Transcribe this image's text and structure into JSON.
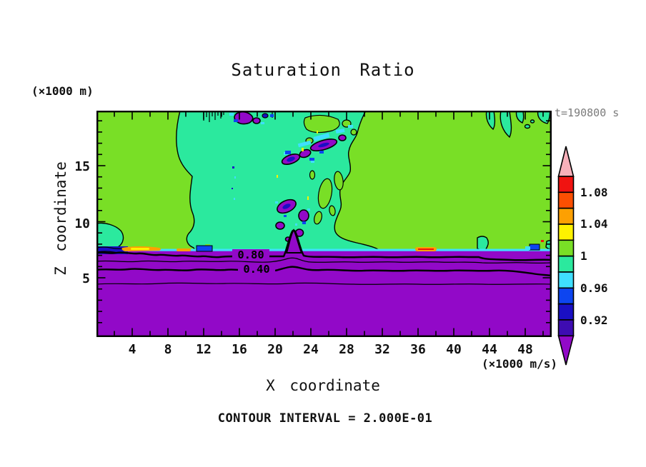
{
  "title": "Saturation Ratio",
  "annotations": {
    "time": "t=190800 s",
    "contour_interval": "CONTOUR INTERVAL = 2.000E-01"
  },
  "axes": {
    "x": {
      "label": "X coordinate",
      "units": "(×1000 m/s)",
      "ticks": [
        "4",
        "8",
        "12",
        "16",
        "20",
        "24",
        "28",
        "32",
        "36",
        "40",
        "44",
        "48"
      ]
    },
    "y": {
      "label": "Z coordinate",
      "units": "(×1000 m)",
      "ticks": [
        "15",
        "10",
        "5"
      ]
    }
  },
  "plot": {
    "contour_labels": [
      "0.80",
      "0.40"
    ]
  },
  "colorbar": {
    "labels": [
      "1.08",
      "1.04",
      "1",
      "0.96",
      "0.92"
    ],
    "segments": [
      "red",
      "orangered",
      "orange",
      "yellow",
      "chartreuse",
      "springgreen",
      "cyan",
      "blue",
      "navy",
      "indigo"
    ],
    "up_arrow": "pink",
    "down_arrow": "purple"
  },
  "palette": {
    "pink": "#f8b0ba",
    "red": "#f01311",
    "orangered": "#fc4f02",
    "orange": "#fda002",
    "yellow": "#fef200",
    "chartreuse": "#79df26",
    "springgreen": "#2be99e",
    "cyan": "#3fdfff",
    "blue": "#0d45f0",
    "navy": "#1a0fc4",
    "indigo": "#3e0cb2",
    "purple": "#9209c8",
    "frame": "#000000"
  },
  "chart_data": {
    "type": "heatmap",
    "subtype": "filled_contour",
    "title": "Saturation Ratio",
    "time_annotation": "t=190800 s",
    "xlabel": "X coordinate",
    "x_units": "(×1000 m/s)",
    "x_ticks": [
      4,
      8,
      12,
      16,
      20,
      24,
      28,
      32,
      36,
      40,
      44,
      48
    ],
    "xlim": [
      0,
      51
    ],
    "ylabel": "Z coordinate",
    "y_units": "(×1000 m)",
    "y_ticks": [
      5,
      10,
      15
    ],
    "ylim": [
      0,
      19.8
    ],
    "grid": false,
    "legend_position": "right-colorbar",
    "contour_interval": 0.2,
    "labeled_contour_lines": [
      0.8,
      0.4
    ],
    "colorbar": {
      "tick_labels": [
        1.08,
        1.04,
        1,
        0.96,
        0.92
      ],
      "segment_step": 0.02,
      "range_boundaries": [
        0.9,
        0.92,
        0.94,
        0.96,
        0.98,
        1.0,
        1.02,
        1.04,
        1.06,
        1.08,
        1.1
      ],
      "colors_top_to_bottom": [
        "pink",
        "red",
        "orangered",
        "orange",
        "yellow",
        "chartreuse",
        "springgreen",
        "cyan",
        "blue",
        "navy",
        "indigo",
        "purple"
      ]
    },
    "features": [
      "Below z≈7.5 (×1000 m) the whole domain is <0.9 (purple) with horizontal contour lines at 0.8, 0.6, 0.4 and 0.2",
      "Sharp boundary near z≈7.5 marked by a thin cyan/blue band; local orange streaks (≈1.04-1.08) near x≈3-7, x≈9-11 and x≈36-38",
      "Central cloudy region x≈9-32, z≈7.5-20 at 0.98-1.00 (spring green) with embedded pockets <0.94 (purple/navy) and 0.96-0.98 cyan flecks",
      "Surrounding air at 1.00-1.02 (chartreuse); spring-green fingers at top near x≈44-48",
      "Narrow purple spike rising from the boundary near x≈22"
    ]
  }
}
